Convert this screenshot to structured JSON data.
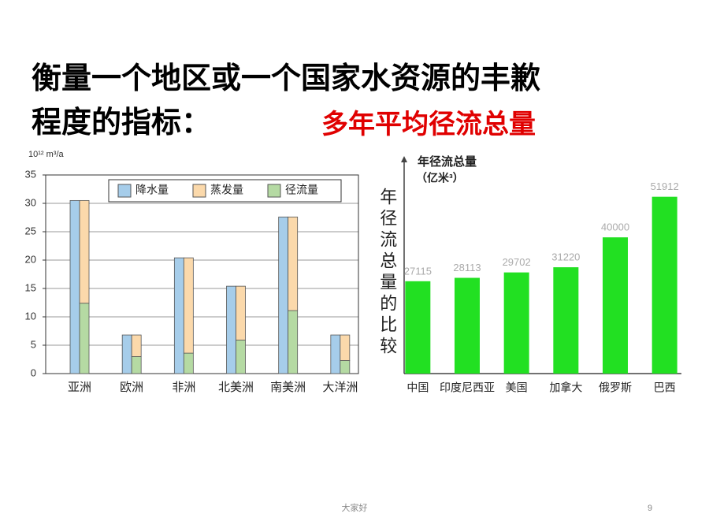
{
  "title_line1": "衡量一个地区或一个国家水资源的丰歉",
  "title_line2": "程度的指标：",
  "highlight": "多年平均径流总量",
  "footer": "大家好",
  "page_number": "9",
  "chart_data": [
    {
      "type": "bar",
      "y_label": "10¹² m³/a",
      "categories": [
        "亚洲",
        "欧洲",
        "非洲",
        "北美洲",
        "南美洲",
        "大洋洲"
      ],
      "series": [
        {
          "name": "降水量",
          "color": "#a6cdea",
          "stack": "a",
          "values": [
            30.5,
            6.8,
            20.4,
            15.4,
            27.6,
            6.8
          ]
        },
        {
          "name": "蒸发量",
          "color": "#fbd9ab",
          "stack": "b",
          "values": [
            18.1,
            3.8,
            16.8,
            9.5,
            16.5,
            4.5
          ]
        },
        {
          "name": "径流量",
          "color": "#b5daa3",
          "stack": "b",
          "values": [
            12.4,
            3.0,
            3.6,
            5.9,
            11.1,
            2.3
          ]
        }
      ],
      "ylim": [
        0,
        35
      ],
      "yticks": [
        0,
        5,
        10,
        15,
        20,
        25,
        30,
        35
      ],
      "grid": true,
      "legend": "top"
    },
    {
      "type": "bar",
      "y_label": "年径流总量",
      "y_unit": "（亿米³）",
      "side_label": "年径流总量的比较",
      "categories": [
        "中国",
        "印度尼西亚",
        "美国",
        "加拿大",
        "俄罗斯",
        "巴西"
      ],
      "values": [
        27115,
        28113,
        29702,
        31220,
        40000,
        51912
      ],
      "color": "#22e022",
      "ylim": [
        0,
        56000
      ],
      "grid": false
    }
  ]
}
